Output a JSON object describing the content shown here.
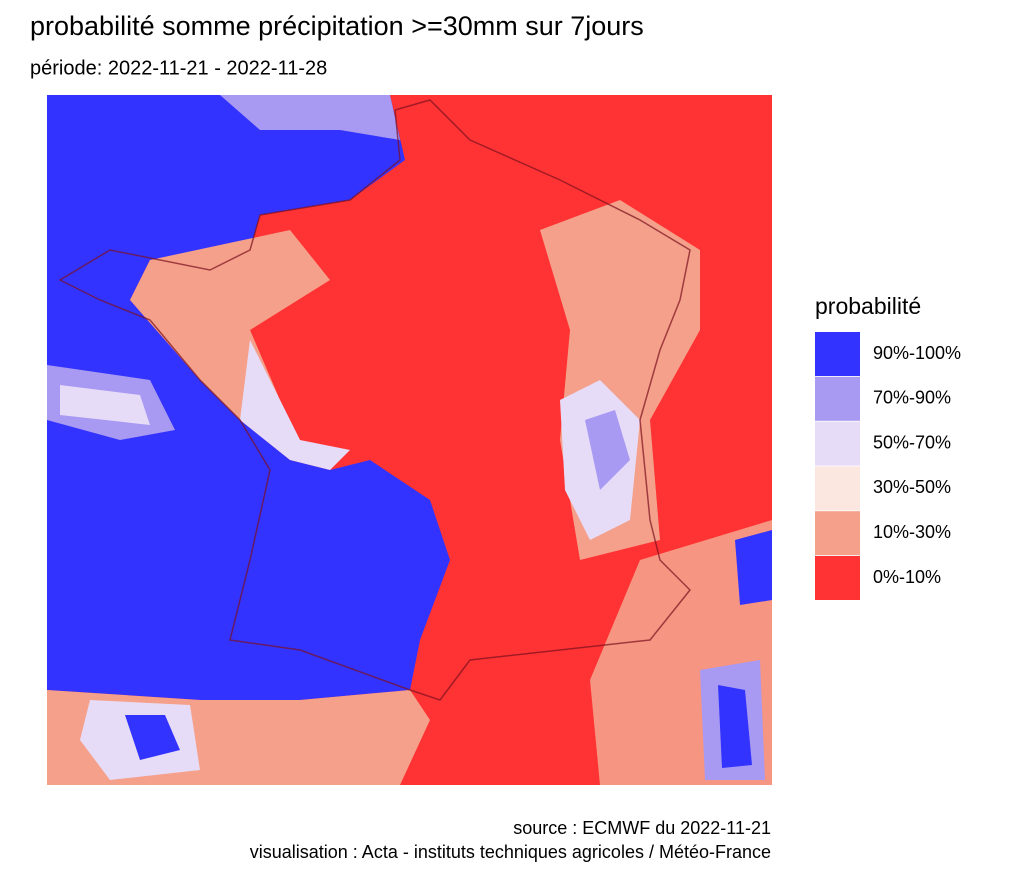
{
  "header": {
    "title": "probabilité somme précipitation >=30mm sur 7jours",
    "subtitle": "période: 2022-11-21 - 2022-11-28"
  },
  "legend": {
    "title": "probabilité",
    "items": [
      {
        "label": "90%-100%",
        "color": "#3333ff"
      },
      {
        "label": "70%-90%",
        "color": "#a899f2"
      },
      {
        "label": "50%-70%",
        "color": "#e6dcf7"
      },
      {
        "label": "30%-50%",
        "color": "#fbe6e0"
      },
      {
        "label": "10%-30%",
        "color": "#f5a08a"
      },
      {
        "label": "0%-10%",
        "color": "#ff3333"
      }
    ]
  },
  "caption": {
    "source": "source : ECMWF du 2022-11-21",
    "credit": "visualisation : Acta - instituts techniques agricoles / Météo-France"
  }
}
